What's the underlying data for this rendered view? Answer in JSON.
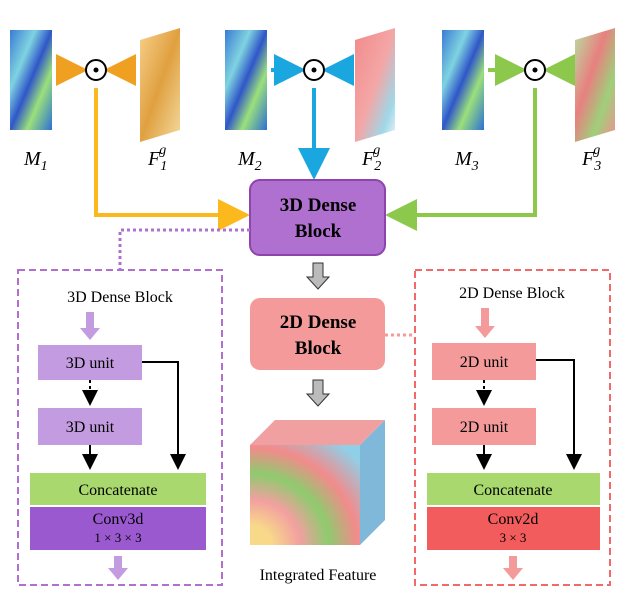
{
  "inputs": [
    {
      "map": {
        "base": "M",
        "sub": "1"
      },
      "feature": {
        "base": "F",
        "sub": "1",
        "sup": "g"
      }
    },
    {
      "map": {
        "base": "M",
        "sub": "2"
      },
      "feature": {
        "base": "F",
        "sub": "2",
        "sup": "g"
      }
    },
    {
      "map": {
        "base": "M",
        "sub": "3"
      },
      "feature": {
        "base": "F",
        "sub": "3",
        "sup": "g"
      }
    }
  ],
  "main_3d_block": {
    "lines": [
      "3D Dense",
      "Block"
    ]
  },
  "main_2d_block": {
    "lines": [
      "2D Dense",
      "Block"
    ]
  },
  "output_label": "Integrated Feature",
  "panel_3d": {
    "title": "3D Dense Block",
    "units": [
      "3D unit",
      "3D unit"
    ],
    "concat": "Concatenate",
    "conv": "Conv3d",
    "kernel": "1 × 3 × 3"
  },
  "panel_2d": {
    "title": "2D Dense Block",
    "units": [
      "2D unit",
      "2D unit"
    ],
    "concat": "Concatenate",
    "conv": "Conv2d",
    "kernel": "3 × 3"
  }
}
